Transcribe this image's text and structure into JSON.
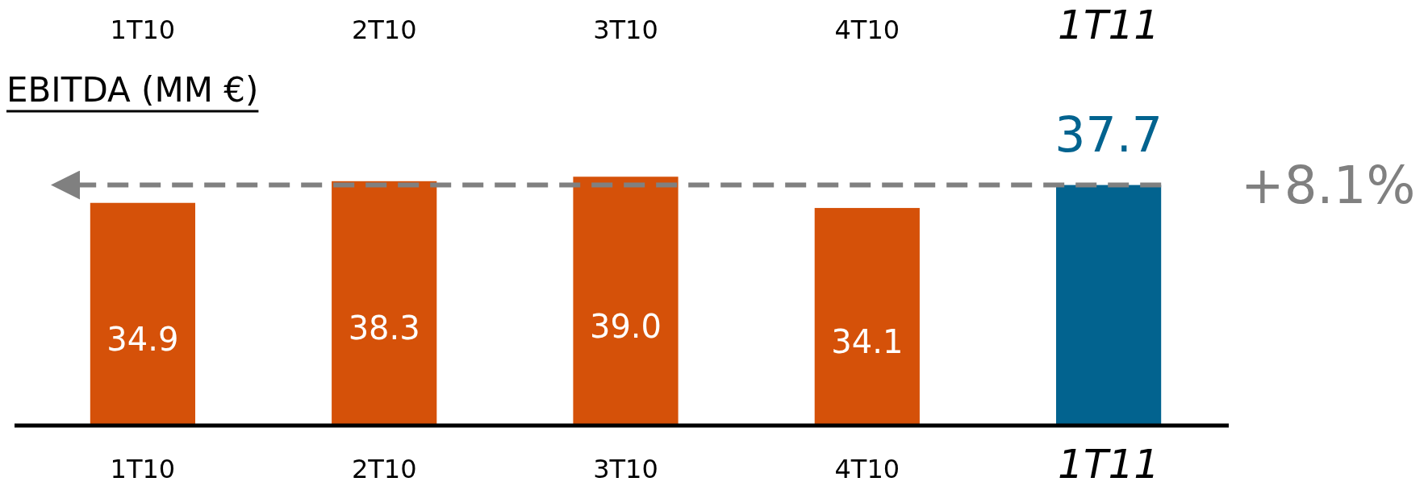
{
  "chart_data": {
    "type": "bar",
    "title": "EBITDA (MM €)",
    "categories": [
      "1T10",
      "2T10",
      "3T10",
      "4T10",
      "1T11"
    ],
    "values": [
      34.9,
      38.3,
      39.0,
      34.1,
      37.7
    ],
    "value_labels": [
      "34.9",
      "38.3",
      "39.0",
      "34.1",
      "37.7"
    ],
    "colors": [
      "#d55109",
      "#d55109",
      "#d55109",
      "#d55109",
      "#02638f"
    ],
    "ref_lines": [
      {
        "axis": "y",
        "value": 37.7,
        "color": "#808080",
        "line_style": "dashed"
      }
    ],
    "annotations": [
      "+8.1%"
    ]
  }
}
